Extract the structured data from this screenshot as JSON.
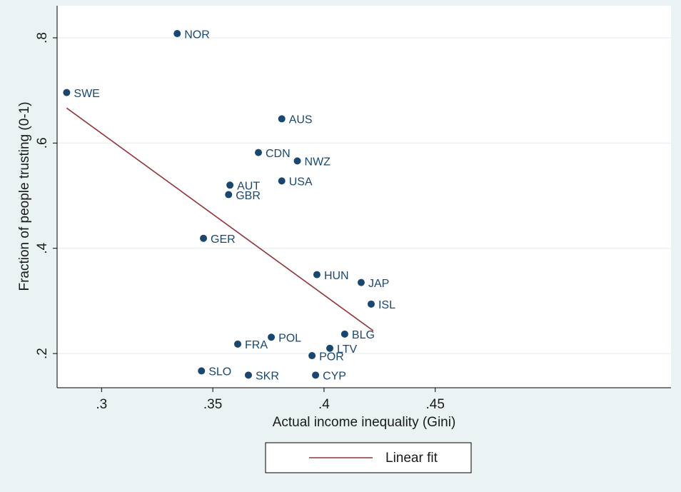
{
  "chart_data": {
    "type": "scatter",
    "x_label": "Actual income inequality (Gini)",
    "y_label": "Fraction of people trusting (0-1)",
    "xlim": [
      0.28,
      0.556
    ],
    "ylim": [
      0.135,
      0.861
    ],
    "xticks": [
      {
        "value": 0.3,
        "label": ".3"
      },
      {
        "value": 0.35,
        "label": ".35"
      },
      {
        "value": 0.4,
        "label": ".4"
      },
      {
        "value": 0.45,
        "label": ".45"
      }
    ],
    "yticks": [
      {
        "value": 0.2,
        "label": ".2"
      },
      {
        "value": 0.4,
        "label": ".4"
      },
      {
        "value": 0.6,
        "label": ".6"
      },
      {
        "value": 0.8,
        "label": ".8"
      }
    ],
    "grid": true,
    "points": {
      "color": "#1a476f",
      "labels": [
        "NOR",
        "SWE",
        "AUS",
        "CDN",
        "NWZ",
        "USA",
        "AUT",
        "GBR",
        "GER",
        "HUN",
        "JAP",
        "ISL",
        "BLG",
        "POL",
        "FRA",
        "LTV",
        "POR",
        "SLO",
        "SKR",
        "CYP"
      ],
      "x": [
        0.334,
        0.2843,
        0.381,
        0.3705,
        0.388,
        0.381,
        0.3577,
        0.3571,
        0.3458,
        0.3968,
        0.4167,
        0.4212,
        0.4093,
        0.3763,
        0.3612,
        0.4026,
        0.3946,
        0.3449,
        0.366,
        0.3962
      ],
      "values": [
        0.808,
        0.696,
        0.646,
        0.582,
        0.566,
        0.528,
        0.52,
        0.502,
        0.419,
        0.35,
        0.335,
        0.294,
        0.237,
        0.231,
        0.218,
        0.21,
        0.196,
        0.167,
        0.159,
        0.159
      ]
    },
    "fit": {
      "name": "Linear fit",
      "color": "#90353b",
      "x": [
        0.2843,
        0.4221
      ],
      "values": [
        0.6665,
        0.2434
      ]
    }
  }
}
